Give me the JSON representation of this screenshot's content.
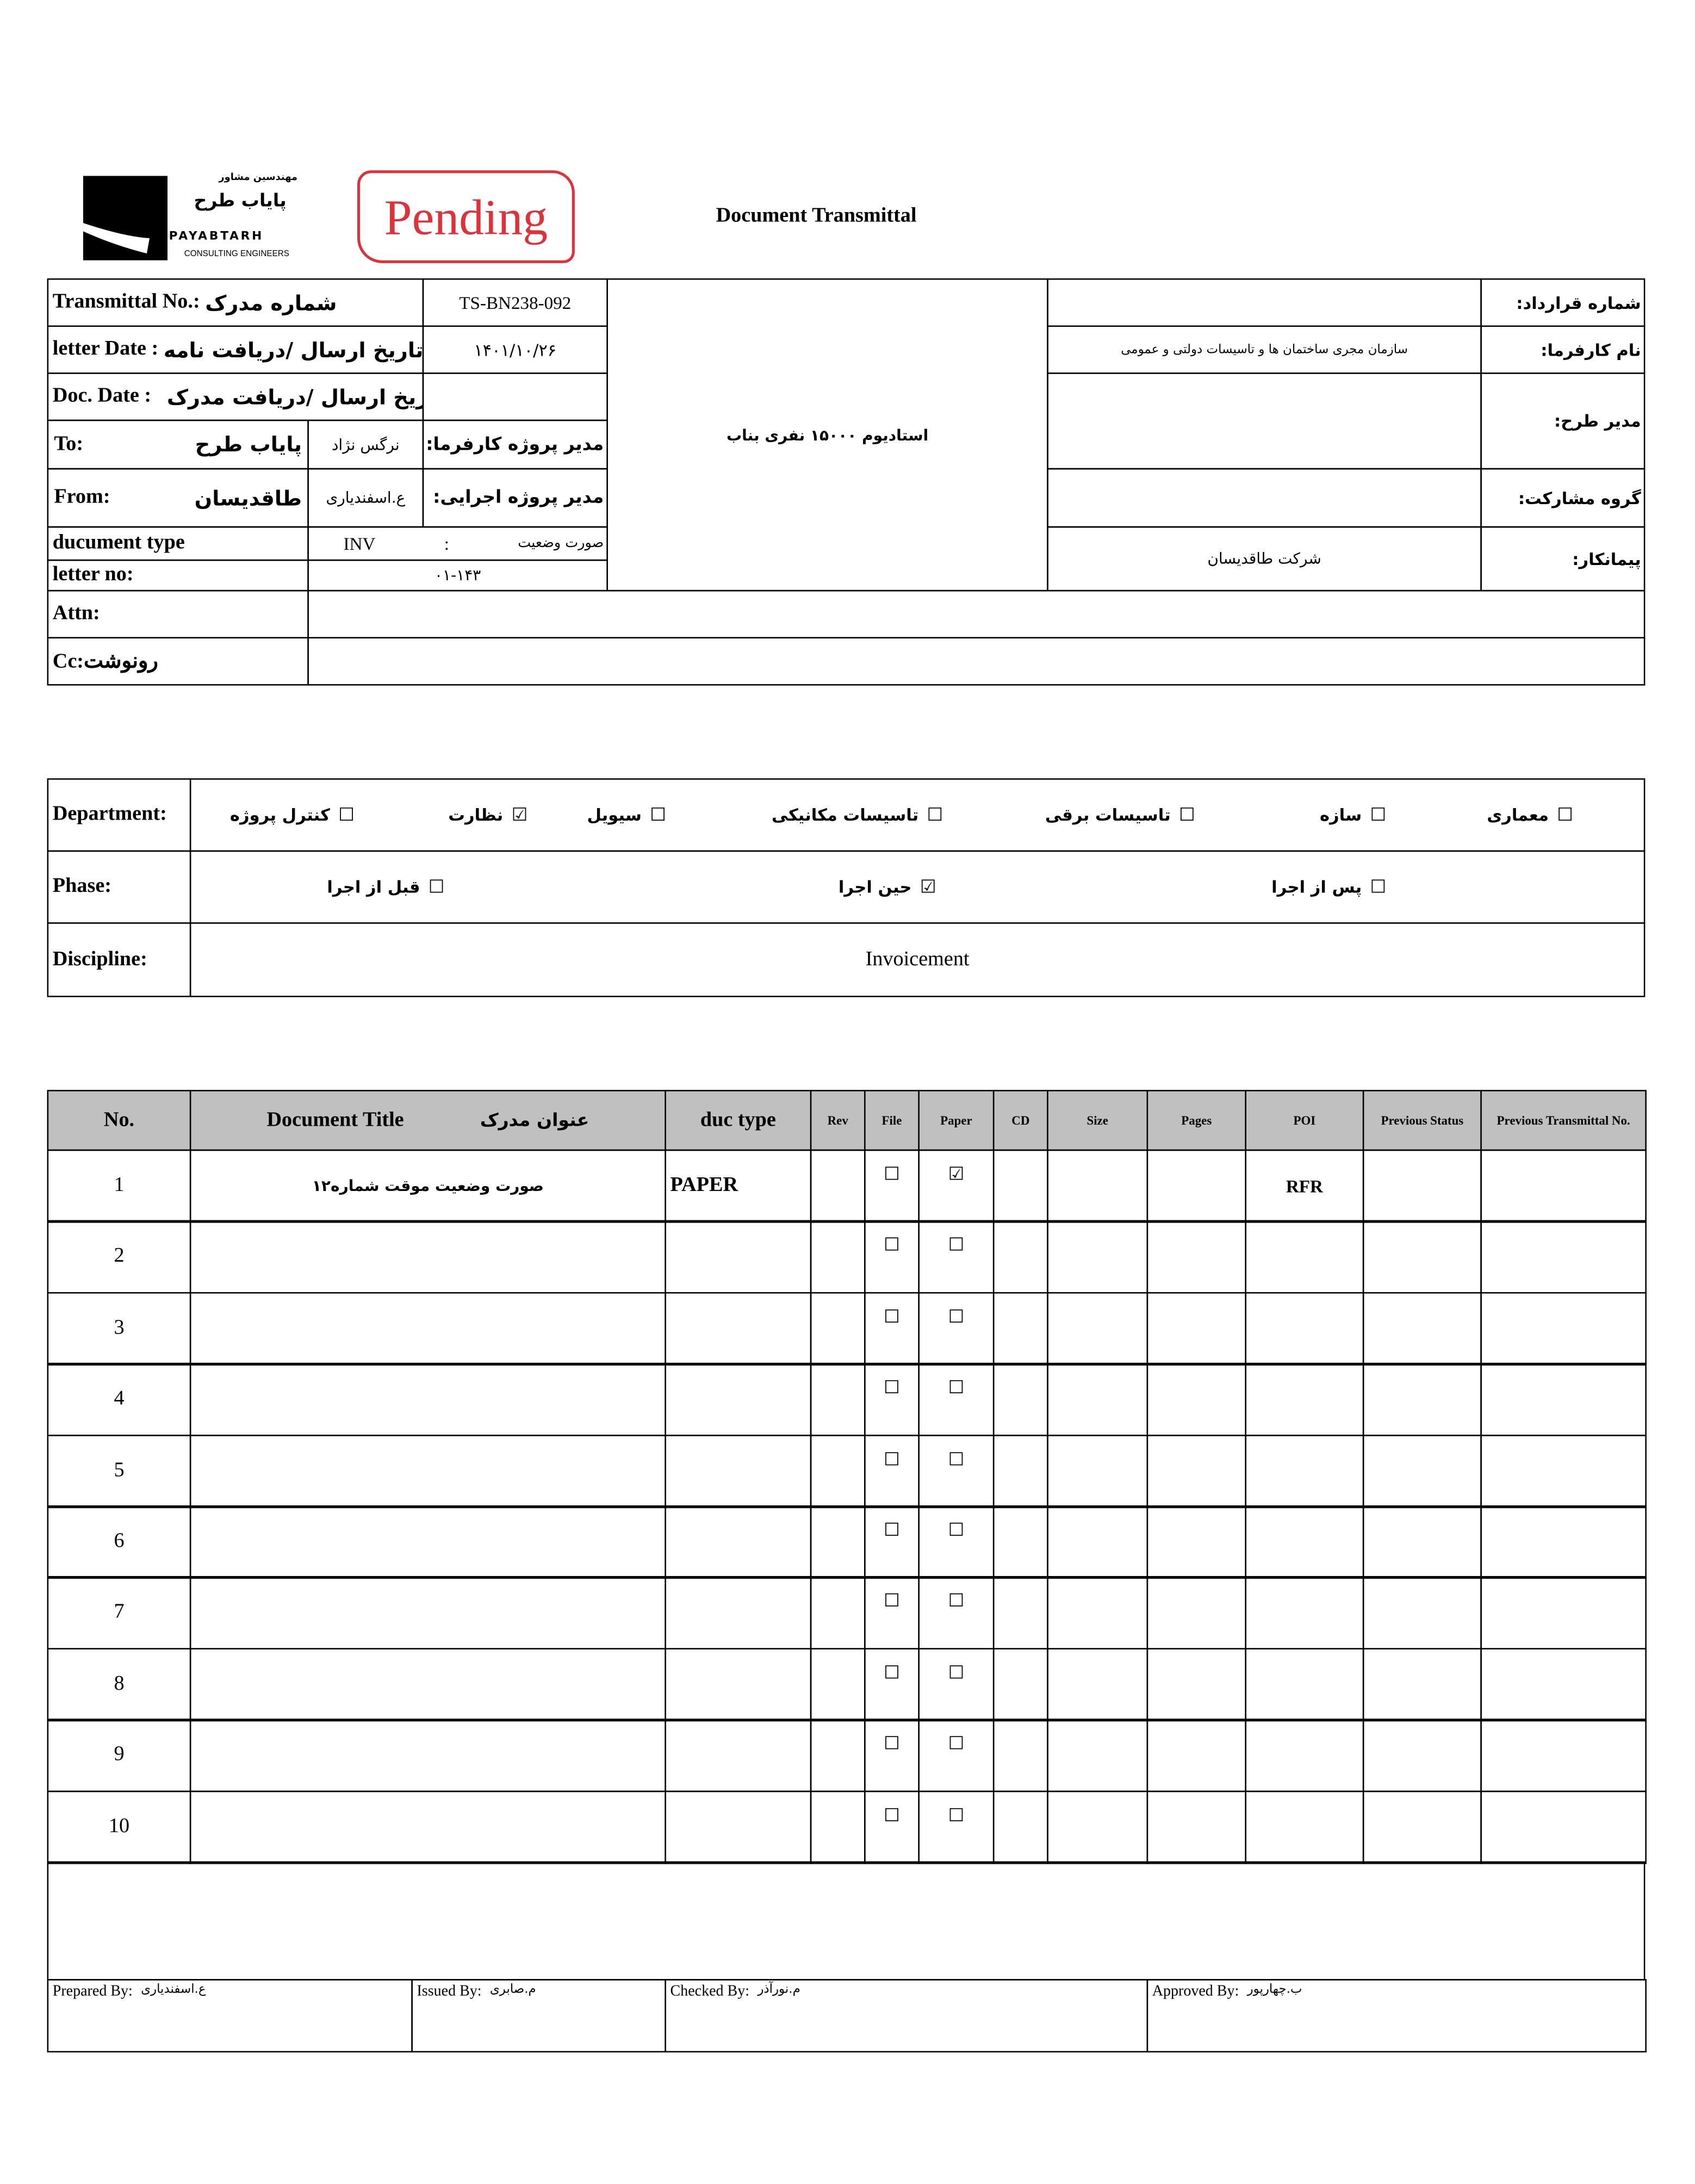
{
  "logo": {
    "persian_small": "مهندسین مشاور",
    "persian_name": "پایاب طرح",
    "latin_name": "PAYABTARH",
    "tagline": "CONSULTING ENGINEERS"
  },
  "stamp": {
    "text": "Pending",
    "color": "#e0303a"
  },
  "title": "Document Transmittal",
  "header": {
    "transmittal_no": {
      "label_en": "Transmittal No.:",
      "label_fa": "شماره مدرک",
      "value": "TS-BN238-092"
    },
    "letter_date": {
      "label_en": "letter Date  :",
      "label_fa": "تاریخ ارسال /دریافت نامه",
      "value": "۱۴۰۱/۱۰/۲۶"
    },
    "doc_date": {
      "label_en": "Doc. Date :",
      "label_fa": "تاریخ ارسال /دریافت مدرک",
      "value": ""
    },
    "to": {
      "label_en": "To:",
      "org": "پایاب طرح",
      "person": "نرگس نژاد",
      "role": "مدیر پروژه کارفرما:"
    },
    "from": {
      "label_en": "From:",
      "org": "طاقدیسان",
      "person": "ع.اسفندیاری",
      "role": "مدیر پروژه اجرایی:"
    },
    "document_type": {
      "label_en": "ducument type",
      "code": "INV",
      "separator": ":",
      "name": "صورت وضعیت"
    },
    "letter_no": {
      "label_en": "letter no:",
      "value": "۰۱-۱۴۳"
    },
    "attn": {
      "label_en": "Attn:",
      "value": ""
    },
    "cc": {
      "label": "Cc:رونوشت",
      "value": ""
    },
    "project": "استادیوم ۱۵۰۰۰ نفری بناب",
    "right": [
      {
        "label": "شماره قرارداد:",
        "value": ""
      },
      {
        "label": "نام کارفرما:",
        "value": "سازمان مجری ساختمان ها و تاسیسات دولتی و عمومی"
      },
      {
        "label": "مدیر طرح:",
        "value": ""
      },
      {
        "label": "گروه مشارکت:",
        "value": ""
      },
      {
        "label": "پیمانکار:",
        "value": "شرکت طاقدیسان"
      }
    ]
  },
  "department": {
    "label": "Department:",
    "options": [
      {
        "label": "معماری",
        "checked": false
      },
      {
        "label": "سازه",
        "checked": false
      },
      {
        "label": "تاسیسات برقی",
        "checked": false
      },
      {
        "label": "تاسیسات مکانیکی",
        "checked": false
      },
      {
        "label": "سیویل",
        "checked": false
      },
      {
        "label": "نظارت",
        "checked": true
      },
      {
        "label": "کنترل پروژه",
        "checked": false
      }
    ]
  },
  "phase": {
    "label": "Phase:",
    "options": [
      {
        "label": "پس از اجرا",
        "checked": false
      },
      {
        "label": "حین اجرا",
        "checked": true
      },
      {
        "label": "قبل از اجرا",
        "checked": false
      }
    ]
  },
  "discipline": {
    "label": "Discipline:",
    "value": "Invoicement"
  },
  "table": {
    "headers": {
      "no": "No.",
      "title_en": "Document Title",
      "title_fa": "عنوان مدرک",
      "duc_type": "duc type",
      "rev": "Rev",
      "file": "File",
      "paper": "Paper",
      "cd": "CD",
      "size": "Size",
      "pages": "Pages",
      "poi": "POI",
      "prev_status": "Previous Status",
      "prev_transmittal": "Previous Transmittal No."
    },
    "rows": [
      {
        "no": "1",
        "title": "صورت وضعیت موقت شماره۱۲",
        "duc_type": "PAPER",
        "rev": "",
        "file": false,
        "paper": true,
        "cd": "",
        "size": "",
        "pages": "",
        "poi": "RFR",
        "prev_status": "",
        "prev_transmittal": ""
      },
      {
        "no": "2",
        "title": "",
        "duc_type": "",
        "rev": "",
        "file": false,
        "paper": false,
        "cd": "",
        "size": "",
        "pages": "",
        "poi": "",
        "prev_status": "",
        "prev_transmittal": ""
      },
      {
        "no": "3",
        "title": "",
        "duc_type": "",
        "rev": "",
        "file": false,
        "paper": false,
        "cd": "",
        "size": "",
        "pages": "",
        "poi": "",
        "prev_status": "",
        "prev_transmittal": ""
      },
      {
        "no": "4",
        "title": "",
        "duc_type": "",
        "rev": "",
        "file": false,
        "paper": false,
        "cd": "",
        "size": "",
        "pages": "",
        "poi": "",
        "prev_status": "",
        "prev_transmittal": ""
      },
      {
        "no": "5",
        "title": "",
        "duc_type": "",
        "rev": "",
        "file": false,
        "paper": false,
        "cd": "",
        "size": "",
        "pages": "",
        "poi": "",
        "prev_status": "",
        "prev_transmittal": ""
      },
      {
        "no": "6",
        "title": "",
        "duc_type": "",
        "rev": "",
        "file": false,
        "paper": false,
        "cd": "",
        "size": "",
        "pages": "",
        "poi": "",
        "prev_status": "",
        "prev_transmittal": ""
      },
      {
        "no": "7",
        "title": "",
        "duc_type": "",
        "rev": "",
        "file": false,
        "paper": false,
        "cd": "",
        "size": "",
        "pages": "",
        "poi": "",
        "prev_status": "",
        "prev_transmittal": ""
      },
      {
        "no": "8",
        "title": "",
        "duc_type": "",
        "rev": "",
        "file": false,
        "paper": false,
        "cd": "",
        "size": "",
        "pages": "",
        "poi": "",
        "prev_status": "",
        "prev_transmittal": ""
      },
      {
        "no": "9",
        "title": "",
        "duc_type": "",
        "rev": "",
        "file": false,
        "paper": false,
        "cd": "",
        "size": "",
        "pages": "",
        "poi": "",
        "prev_status": "",
        "prev_transmittal": ""
      },
      {
        "no": "10",
        "title": "",
        "duc_type": "",
        "rev": "",
        "file": false,
        "paper": false,
        "cd": "",
        "size": "",
        "pages": "",
        "poi": "",
        "prev_status": "",
        "prev_transmittal": ""
      }
    ]
  },
  "signatures": [
    {
      "label": "Prepared By:",
      "name": "ع.اسفندیاری"
    },
    {
      "label": "Issued By:",
      "name": "م.صابری"
    },
    {
      "label": "Checked By:",
      "name": "م.نورآذر"
    },
    {
      "label": "Approved By:",
      "name": "ب.چهارپور"
    }
  ]
}
